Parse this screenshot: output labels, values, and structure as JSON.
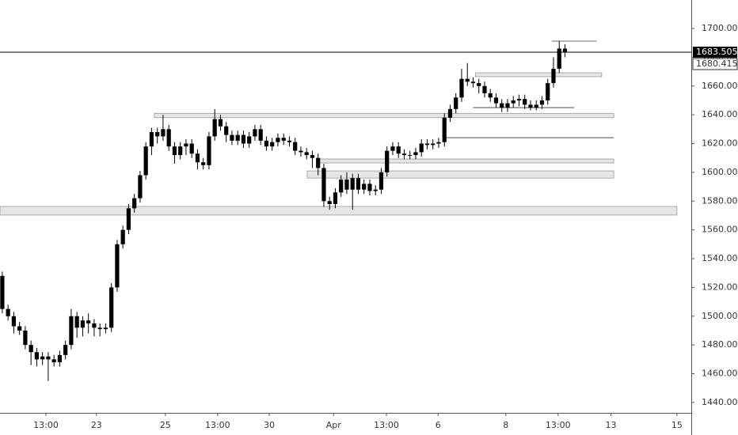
{
  "chart_data": {
    "type": "candlestick",
    "open": [
      1528,
      1505,
      1500,
      1493,
      1490,
      1480,
      1475,
      1470,
      1472,
      1470,
      1468,
      1473,
      1480,
      1500,
      1492,
      1497,
      1495,
      1492,
      1491,
      1492,
      1520,
      1550,
      1560,
      1575,
      1582,
      1598,
      1618,
      1628,
      1625,
      1630,
      1618,
      1612,
      1618,
      1620,
      1613,
      1607,
      1605,
      1625,
      1637,
      1632,
      1626,
      1622,
      1626,
      1620,
      1625,
      1630,
      1622,
      1618,
      1621,
      1624,
      1622,
      1621,
      1615,
      1614,
      1612,
      1610,
      1603,
      1580,
      1578,
      1586,
      1595,
      1588,
      1596,
      1588,
      1592,
      1587,
      1588,
      1600,
      1615,
      1618,
      1613,
      1612,
      1612,
      1614,
      1620,
      1619,
      1620,
      1621,
      1638,
      1644,
      1652,
      1665,
      1663,
      1662,
      1660,
      1655,
      1652,
      1648,
      1645,
      1648,
      1650,
      1651,
      1647,
      1645,
      1647,
      1650,
      1662,
      1672,
      1686
    ],
    "high": [
      1531,
      1508,
      1503,
      1496,
      1493,
      1483,
      1478,
      1475,
      1475,
      1473,
      1476,
      1483,
      1505,
      1503,
      1500,
      1502,
      1498,
      1495,
      1495,
      1523,
      1553,
      1563,
      1578,
      1585,
      1601,
      1621,
      1631,
      1631,
      1640,
      1633,
      1621,
      1621,
      1623,
      1623,
      1616,
      1610,
      1628,
      1644,
      1640,
      1635,
      1629,
      1629,
      1629,
      1628,
      1633,
      1633,
      1625,
      1624,
      1627,
      1627,
      1625,
      1624,
      1618,
      1617,
      1615,
      1613,
      1606,
      1583,
      1589,
      1598,
      1600,
      1599,
      1599,
      1595,
      1595,
      1591,
      1603,
      1618,
      1621,
      1621,
      1616,
      1615,
      1617,
      1623,
      1623,
      1623,
      1624,
      1641,
      1647,
      1655,
      1672,
      1676,
      1666,
      1665,
      1663,
      1658,
      1655,
      1651,
      1651,
      1653,
      1654,
      1654,
      1650,
      1650,
      1653,
      1665,
      1680,
      1691,
      1689
    ],
    "low": [
      1502,
      1497,
      1488,
      1487,
      1477,
      1466,
      1465,
      1466,
      1455,
      1465,
      1465,
      1470,
      1477,
      1485,
      1486,
      1488,
      1486,
      1486,
      1488,
      1489,
      1517,
      1547,
      1557,
      1572,
      1579,
      1595,
      1612,
      1620,
      1622,
      1615,
      1606,
      1609,
      1612,
      1610,
      1602,
      1602,
      1602,
      1622,
      1629,
      1621,
      1619,
      1619,
      1617,
      1617,
      1622,
      1619,
      1615,
      1615,
      1618,
      1619,
      1618,
      1612,
      1611,
      1609,
      1603,
      1598,
      1576,
      1574,
      1575,
      1583,
      1585,
      1574,
      1585,
      1585,
      1584,
      1584,
      1585,
      1597,
      1612,
      1610,
      1609,
      1609,
      1609,
      1611,
      1616,
      1616,
      1617,
      1618,
      1635,
      1641,
      1649,
      1660,
      1659,
      1655,
      1652,
      1649,
      1645,
      1642,
      1642,
      1645,
      1646,
      1644,
      1643,
      1643,
      1644,
      1647,
      1659,
      1669,
      1680
    ],
    "close": [
      1505,
      1500,
      1493,
      1490,
      1480,
      1475,
      1470,
      1472,
      1470,
      1468,
      1473,
      1480,
      1500,
      1492,
      1497,
      1495,
      1492,
      1491,
      1492,
      1520,
      1550,
      1560,
      1575,
      1582,
      1598,
      1618,
      1628,
      1625,
      1630,
      1618,
      1612,
      1618,
      1620,
      1613,
      1607,
      1605,
      1625,
      1637,
      1632,
      1626,
      1622,
      1626,
      1620,
      1625,
      1630,
      1622,
      1618,
      1621,
      1624,
      1622,
      1621,
      1615,
      1614,
      1612,
      1610,
      1603,
      1580,
      1578,
      1586,
      1595,
      1588,
      1596,
      1588,
      1592,
      1587,
      1588,
      1600,
      1615,
      1618,
      1613,
      1612,
      1612,
      1614,
      1620,
      1619,
      1620,
      1621,
      1638,
      1644,
      1652,
      1665,
      1663,
      1662,
      1660,
      1655,
      1652,
      1648,
      1645,
      1648,
      1650,
      1651,
      1647,
      1645,
      1647,
      1650,
      1662,
      1672,
      1686,
      1683.505
    ],
    "color": "#000000",
    "xlim": [
      -0.4,
      120
    ],
    "xticks": [
      {
        "value": 7.6,
        "label": "13:00"
      },
      {
        "value": 16.4,
        "label": "23"
      },
      {
        "value": 28.4,
        "label": "25"
      },
      {
        "value": 37.5,
        "label": "13:00"
      },
      {
        "value": 46.5,
        "label": "30"
      },
      {
        "value": 57.7,
        "label": "Apr"
      },
      {
        "value": 66.9,
        "label": "13:00"
      },
      {
        "value": 75.9,
        "label": "6"
      },
      {
        "value": 87.7,
        "label": "8"
      },
      {
        "value": 96.8,
        "label": "13:00"
      },
      {
        "value": 106,
        "label": "13"
      },
      {
        "value": 117.5,
        "label": "15"
      }
    ],
    "ylim": [
      1432.8,
      1719.8
    ],
    "yticks": [
      {
        "value": 1440,
        "label": "1440.000"
      },
      {
        "value": 1460,
        "label": "1460.000"
      },
      {
        "value": 1480,
        "label": "1480.000"
      },
      {
        "value": 1500,
        "label": "1500.000"
      },
      {
        "value": 1520,
        "label": "1520.000"
      },
      {
        "value": 1540,
        "label": "1540.000"
      },
      {
        "value": 1560,
        "label": "1560.000"
      },
      {
        "value": 1580,
        "label": "1580.000"
      },
      {
        "value": 1600,
        "label": "1600.000"
      },
      {
        "value": 1620,
        "label": "1620.000"
      },
      {
        "value": 1640,
        "label": "1640.000"
      },
      {
        "value": 1660,
        "label": "1660.000"
      },
      {
        "value": 1680,
        "label": "1680.000"
      },
      {
        "value": 1700,
        "label": "1700.000"
      }
    ],
    "zones": [
      {
        "x": [
          26.5,
          106.5
        ],
        "y": [
          1638,
          1641
        ]
      },
      {
        "x": [
          -0.4,
          117.5
        ],
        "y": [
          1570.3,
          1576.3
        ]
      },
      {
        "x": [
          55,
          106.5
        ],
        "y": [
          1606.5,
          1609.3
        ]
      },
      {
        "x": [
          53.1,
          106.5
        ],
        "y": [
          1596,
          1601
        ]
      },
      {
        "x": [
          82.4,
          104.4
        ],
        "y": [
          1666.5,
          1669.2
        ]
      }
    ],
    "levels": [
      {
        "x": [
          95.7,
          103.5
        ],
        "y": 1691.2
      },
      {
        "x": [
          82,
          99.6
        ],
        "y": 1645
      },
      {
        "x": [
          77.3,
          106.5
        ],
        "y": 1624.1
      }
    ],
    "last_price": 1683.505,
    "second_price": 1680.415
  }
}
